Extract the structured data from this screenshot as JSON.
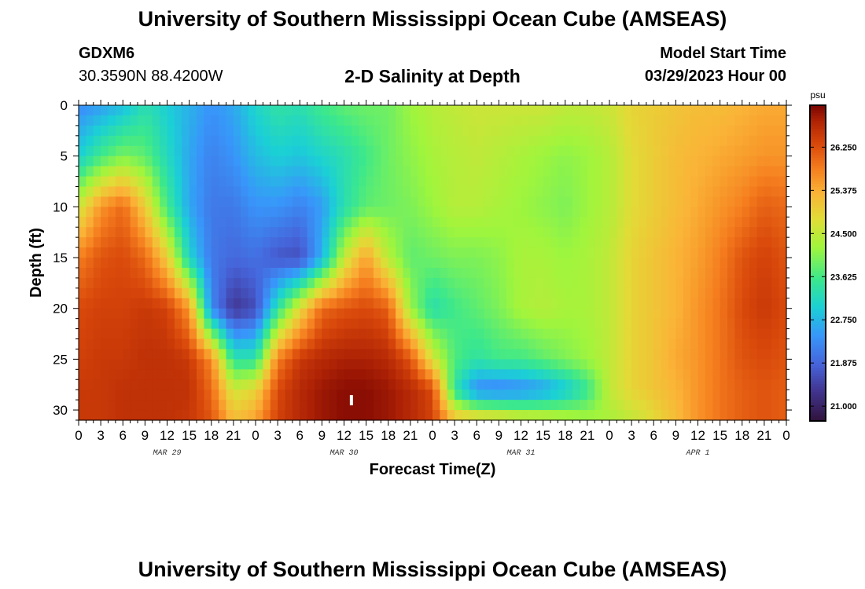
{
  "page": {
    "title_top": "University of Southern Mississippi Ocean Cube (AMSEAS)",
    "title_bottom": "University of Southern Mississippi Ocean Cube (AMSEAS)",
    "station": "GDXM6",
    "coordinates": "30.3590N  88.4200W",
    "plot_title": "2-D Salinity at Depth",
    "model_start_label": "Model Start Time",
    "model_start_value": "03/29/2023 Hour 00"
  },
  "chart_data": {
    "type": "heatmap",
    "title": "2-D Salinity at Depth",
    "xlabel": "Forecast Time(Z)",
    "ylabel": "Depth (ft)",
    "x_range_hours": [
      0,
      96
    ],
    "ylim": [
      0,
      31
    ],
    "y_ticks": [
      0,
      5,
      10,
      15,
      20,
      25,
      30
    ],
    "x_tick_labels": [
      "0",
      "3",
      "6",
      "9",
      "12",
      "15",
      "18",
      "21",
      "0",
      "3",
      "6",
      "9",
      "12",
      "15",
      "18",
      "21",
      "0",
      "3",
      "6",
      "9",
      "12",
      "15",
      "18",
      "21",
      "0",
      "3",
      "6",
      "9",
      "12",
      "15",
      "18",
      "21",
      "0"
    ],
    "date_labels": [
      {
        "hour": 12,
        "label": "MAR 29"
      },
      {
        "hour": 36,
        "label": "MAR 30"
      },
      {
        "hour": 60,
        "label": "MAR 31"
      },
      {
        "hour": 84,
        "label": "APR 1"
      }
    ],
    "colorbar": {
      "unit": "psu",
      "min": 20.7,
      "max": 27.1,
      "ticks": [
        "26.250",
        "25.375",
        "24.500",
        "23.625",
        "22.750",
        "21.875",
        "21.000"
      ]
    },
    "depths_ft": [
      0,
      5,
      10,
      15,
      20,
      25,
      28,
      31
    ],
    "hours": [
      0,
      3,
      6,
      9,
      12,
      15,
      18,
      21,
      24,
      27,
      30,
      33,
      36,
      39,
      42,
      45,
      48,
      51,
      54,
      57,
      60,
      63,
      66,
      69,
      72,
      75,
      78,
      81,
      84,
      87,
      90,
      93,
      96
    ],
    "salinity_psu": [
      [
        22.3,
        22.5,
        22.8,
        23.3,
        23.0,
        22.7,
        22.4,
        22.6,
        23.1,
        23.4,
        23.3,
        23.6,
        23.8,
        23.9,
        23.9,
        24.2,
        24.4,
        24.5,
        24.6,
        24.6,
        24.6,
        24.6,
        24.5,
        24.5,
        24.6,
        24.9,
        25.0,
        25.1,
        25.2,
        25.2,
        25.3,
        25.4,
        25.4
      ],
      [
        23.0,
        23.6,
        24.0,
        23.8,
        23.2,
        22.6,
        22.2,
        22.4,
        22.8,
        23.0,
        22.9,
        23.1,
        23.3,
        23.6,
        23.9,
        24.1,
        24.3,
        24.4,
        24.5,
        24.4,
        24.3,
        24.2,
        24.1,
        24.2,
        24.4,
        24.8,
        25.0,
        25.2,
        25.3,
        25.4,
        25.5,
        25.6,
        25.6
      ],
      [
        24.6,
        25.6,
        26.0,
        25.0,
        23.6,
        22.6,
        22.1,
        22.1,
        22.4,
        22.4,
        22.2,
        22.5,
        23.3,
        23.8,
        23.9,
        24.0,
        24.2,
        24.4,
        24.4,
        24.3,
        24.2,
        24.1,
        24.0,
        24.2,
        24.4,
        24.8,
        25.0,
        25.2,
        25.4,
        25.6,
        25.8,
        26.1,
        26.0
      ],
      [
        25.8,
        26.2,
        26.3,
        26.0,
        25.0,
        23.1,
        22.1,
        21.9,
        22.0,
        21.7,
        21.6,
        22.7,
        24.5,
        25.5,
        24.4,
        23.8,
        23.9,
        24.0,
        24.0,
        24.1,
        24.3,
        24.3,
        24.2,
        24.3,
        24.5,
        24.9,
        25.1,
        25.3,
        25.5,
        25.8,
        26.2,
        26.4,
        26.2
      ],
      [
        26.3,
        26.4,
        26.4,
        26.5,
        26.4,
        25.6,
        22.3,
        21.3,
        21.6,
        23.4,
        24.8,
        26.0,
        26.2,
        26.3,
        26.1,
        24.2,
        23.3,
        23.6,
        23.8,
        24.0,
        24.3,
        24.4,
        24.3,
        24.3,
        24.5,
        24.9,
        25.1,
        25.3,
        25.6,
        25.9,
        26.3,
        26.5,
        26.3
      ],
      [
        26.4,
        26.5,
        26.5,
        26.6,
        26.6,
        26.5,
        25.7,
        23.4,
        23.4,
        25.8,
        26.5,
        26.7,
        26.8,
        26.8,
        26.7,
        26.2,
        24.7,
        23.7,
        23.4,
        23.6,
        23.6,
        23.8,
        24.0,
        24.2,
        24.5,
        24.9,
        25.1,
        25.4,
        25.6,
        25.9,
        26.2,
        26.3,
        26.2
      ],
      [
        26.5,
        26.5,
        26.6,
        26.6,
        26.6,
        26.6,
        26.0,
        24.6,
        24.9,
        26.3,
        26.7,
        26.9,
        27.0,
        27.0,
        26.9,
        26.7,
        26.3,
        23.4,
        22.3,
        22.2,
        22.3,
        22.5,
        22.9,
        23.5,
        24.5,
        24.9,
        25.1,
        25.3,
        25.6,
        25.9,
        26.1,
        26.2,
        26.1
      ],
      [
        26.5,
        26.5,
        26.6,
        26.6,
        26.6,
        26.5,
        26.2,
        25.2,
        25.5,
        26.4,
        26.7,
        26.9,
        27.0,
        27.0,
        26.9,
        26.7,
        26.4,
        25.2,
        25.1,
        25.0,
        24.8,
        24.7,
        24.5,
        24.3,
        24.3,
        24.5,
        24.8,
        25.2,
        25.6,
        25.9,
        26.1,
        26.2,
        26.1
      ]
    ],
    "annotations": [
      {
        "hour": 37,
        "depth_ft": 29,
        "label": "",
        "description": "white tick mark"
      }
    ]
  }
}
